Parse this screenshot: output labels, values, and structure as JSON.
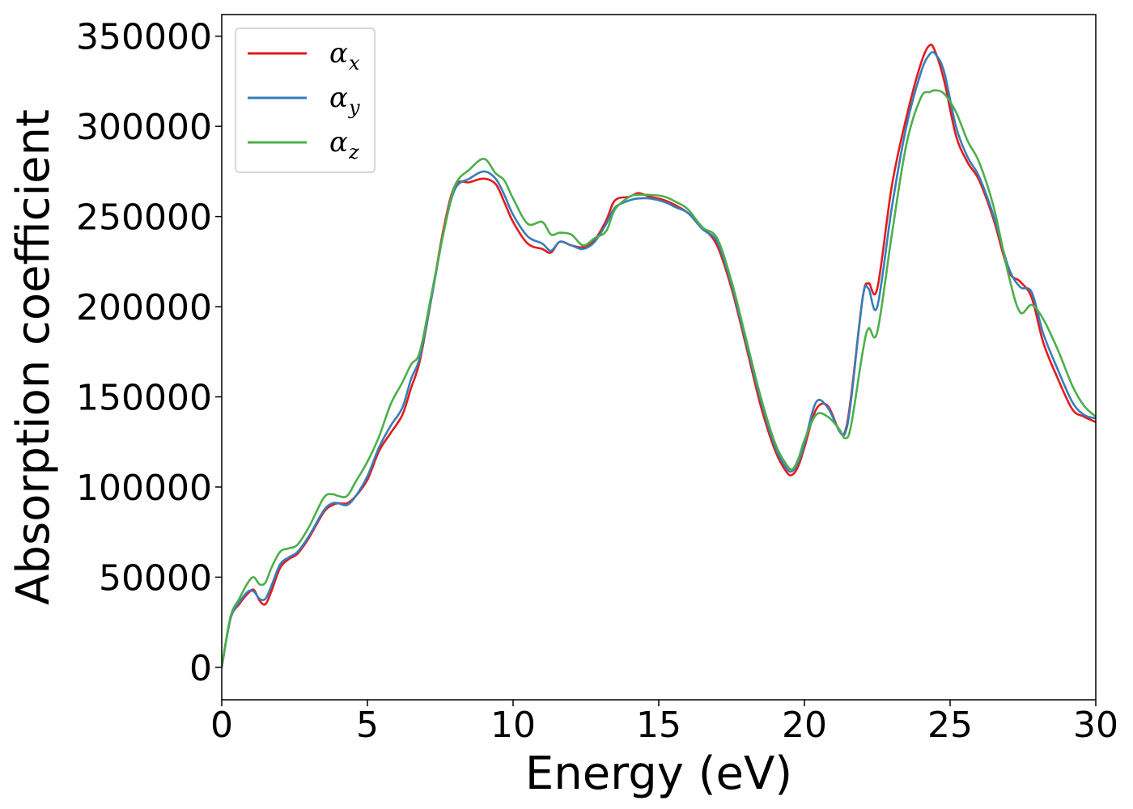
{
  "chart_data": {
    "type": "line",
    "xlabel": "Energy (eV)",
    "ylabel": "Absorption coefficient",
    "xlim": [
      0,
      30
    ],
    "ylim": [
      -18000,
      362000
    ],
    "xticks": [
      0,
      5,
      10,
      15,
      20,
      25,
      30
    ],
    "xtick_labels": [
      "0",
      "5",
      "10",
      "15",
      "20",
      "25",
      "30"
    ],
    "yticks": [
      0,
      50000,
      100000,
      150000,
      200000,
      250000,
      300000,
      350000
    ],
    "ytick_labels": [
      "0",
      "50000",
      "100000",
      "150000",
      "200000",
      "250000",
      "300000",
      "350000"
    ],
    "grid": false,
    "legend_position": "top-left",
    "series": [
      {
        "name": "α",
        "subscript": "x",
        "color": "#e41a1c",
        "x": [
          0,
          0.3,
          0.6,
          0.9,
          1.1,
          1.3,
          1.5,
          1.7,
          2.0,
          2.3,
          2.6,
          3.0,
          3.5,
          3.8,
          4.0,
          4.3,
          4.6,
          5.0,
          5.4,
          5.8,
          6.2,
          6.5,
          6.8,
          7.2,
          7.6,
          8.0,
          8.5,
          9.0,
          9.4,
          9.7,
          10.0,
          10.5,
          11.0,
          11.3,
          11.6,
          12.0,
          12.4,
          12.8,
          13.2,
          13.5,
          14.0,
          14.3,
          14.7,
          15.2,
          15.6,
          16.0,
          16.5,
          17.0,
          17.5,
          18.0,
          18.5,
          19.0,
          19.4,
          19.6,
          19.8,
          20.0,
          20.4,
          20.8,
          21.2,
          21.4,
          21.6,
          22.0,
          22.2,
          22.5,
          23.0,
          23.5,
          24.0,
          24.3,
          24.5,
          24.8,
          25.2,
          25.6,
          26.0,
          26.5,
          27.0,
          27.4,
          27.8,
          28.2,
          28.7,
          29.2,
          29.6,
          30.0
        ],
        "y": [
          0,
          27000,
          35000,
          41000,
          43000,
          37000,
          35000,
          42000,
          55000,
          60000,
          63000,
          72000,
          86000,
          90000,
          91000,
          91000,
          95000,
          104000,
          120000,
          130000,
          140000,
          155000,
          170000,
          205000,
          242000,
          267000,
          269000,
          271000,
          268000,
          258000,
          247000,
          235000,
          232000,
          230000,
          236000,
          234000,
          233000,
          237000,
          248000,
          259000,
          261000,
          263000,
          261000,
          259000,
          256000,
          252000,
          244000,
          234000,
          210000,
          178000,
          145000,
          120000,
          108000,
          107000,
          112000,
          122000,
          143000,
          145000,
          131000,
          131000,
          150000,
          205000,
          213000,
          210000,
          267000,
          305000,
          335000,
          345000,
          341000,
          325000,
          295000,
          280000,
          270000,
          248000,
          220000,
          214000,
          205000,
          180000,
          160000,
          143000,
          139000,
          136000
        ]
      },
      {
        "name": "α",
        "subscript": "y",
        "color": "#377eb8",
        "x": [
          0,
          0.3,
          0.6,
          0.9,
          1.1,
          1.3,
          1.5,
          1.7,
          2.0,
          2.3,
          2.6,
          3.0,
          3.5,
          3.8,
          4.0,
          4.3,
          4.6,
          5.0,
          5.4,
          5.8,
          6.2,
          6.5,
          6.8,
          7.2,
          7.6,
          8.0,
          8.5,
          9.0,
          9.4,
          9.7,
          10.0,
          10.5,
          11.0,
          11.3,
          11.6,
          12.0,
          12.4,
          12.8,
          13.2,
          13.5,
          14.0,
          14.3,
          14.7,
          15.2,
          15.6,
          16.0,
          16.5,
          17.0,
          17.5,
          18.0,
          18.5,
          19.0,
          19.4,
          19.6,
          19.8,
          20.0,
          20.4,
          20.8,
          21.2,
          21.4,
          21.6,
          22.0,
          22.2,
          22.5,
          23.0,
          23.5,
          24.0,
          24.3,
          24.5,
          24.8,
          25.2,
          25.6,
          26.0,
          26.5,
          27.0,
          27.4,
          27.8,
          28.2,
          28.7,
          29.2,
          29.6,
          30.0
        ],
        "y": [
          0,
          27000,
          36000,
          42000,
          42000,
          38000,
          38000,
          45000,
          57000,
          61000,
          64000,
          73000,
          87000,
          91000,
          91000,
          90000,
          95000,
          106000,
          122000,
          134000,
          144000,
          160000,
          172000,
          205000,
          240000,
          265000,
          271000,
          275000,
          271000,
          262000,
          251000,
          239000,
          235000,
          231000,
          236000,
          234000,
          232000,
          236000,
          246000,
          255000,
          259000,
          260000,
          260000,
          258000,
          255000,
          252000,
          243000,
          236000,
          212000,
          180000,
          148000,
          122000,
          110000,
          109000,
          114000,
          124000,
          147000,
          144000,
          131000,
          130000,
          148000,
          205000,
          210000,
          200000,
          255000,
          300000,
          330000,
          340000,
          340000,
          330000,
          300000,
          283000,
          272000,
          250000,
          222000,
          211000,
          208000,
          185000,
          165000,
          147000,
          140000,
          138000
        ]
      },
      {
        "name": "α",
        "subscript": "z",
        "color": "#4daf4a",
        "x": [
          0,
          0.3,
          0.6,
          0.9,
          1.1,
          1.3,
          1.5,
          1.7,
          2.0,
          2.3,
          2.6,
          3.0,
          3.5,
          3.8,
          4.0,
          4.3,
          4.6,
          5.0,
          5.4,
          5.8,
          6.2,
          6.5,
          6.8,
          7.2,
          7.6,
          8.0,
          8.5,
          9.0,
          9.4,
          9.7,
          10.0,
          10.5,
          11.0,
          11.3,
          11.6,
          12.0,
          12.4,
          12.8,
          13.2,
          13.5,
          14.0,
          14.3,
          14.7,
          15.2,
          15.6,
          16.0,
          16.5,
          17.0,
          17.5,
          18.0,
          18.5,
          19.0,
          19.4,
          19.6,
          19.8,
          20.0,
          20.4,
          20.8,
          21.2,
          21.4,
          21.6,
          22.0,
          22.2,
          22.5,
          23.0,
          23.5,
          24.0,
          24.3,
          24.5,
          24.8,
          25.2,
          25.6,
          26.0,
          26.5,
          27.0,
          27.4,
          27.8,
          28.2,
          28.7,
          29.2,
          29.6,
          30.0
        ],
        "y": [
          0,
          28000,
          38000,
          47000,
          50000,
          46000,
          47000,
          55000,
          64000,
          66000,
          68000,
          78000,
          94000,
          96000,
          95000,
          95000,
          103000,
          114000,
          128000,
          146000,
          158000,
          168000,
          175000,
          207000,
          240000,
          267000,
          276000,
          282000,
          274000,
          270000,
          260000,
          246000,
          247000,
          240000,
          241000,
          240000,
          234000,
          238000,
          242000,
          254000,
          261000,
          262000,
          262000,
          261000,
          258000,
          254000,
          244000,
          238000,
          214000,
          182000,
          150000,
          124000,
          112000,
          110000,
          116000,
          126000,
          140000,
          139000,
          132000,
          127000,
          134000,
          175000,
          188000,
          186000,
          240000,
          290000,
          316000,
          319000,
          320000,
          318000,
          308000,
          292000,
          280000,
          255000,
          218000,
          197000,
          201000,
          193000,
          176000,
          156000,
          145000,
          139000
        ]
      }
    ]
  }
}
